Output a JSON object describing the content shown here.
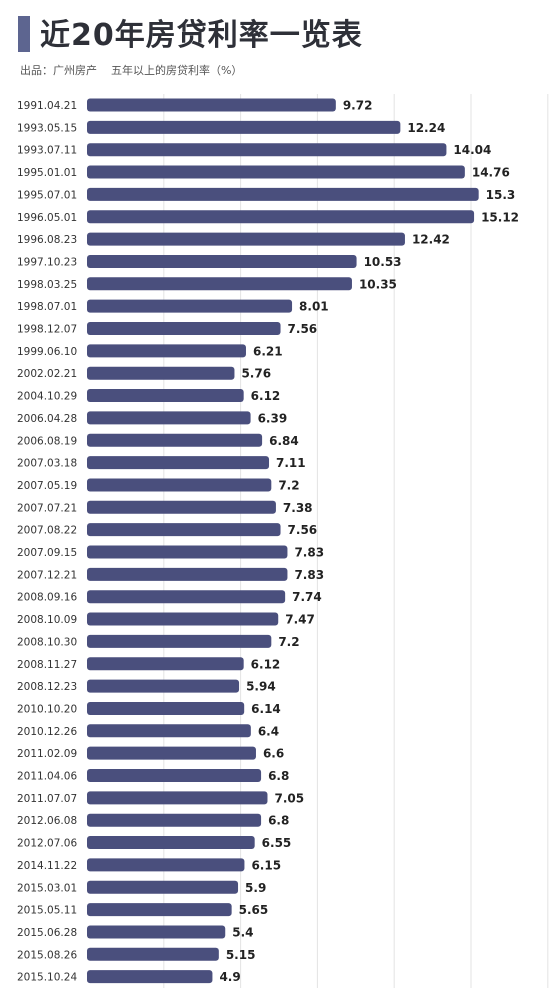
{
  "header": {
    "title": "近20年房贷利率一览表",
    "subtitle": "出品：广州房产    五年以上的房贷利率（%）"
  },
  "colors": {
    "bar": "#4a4f7d",
    "title_bar": "#5d6590",
    "grid": "#e3e3e3"
  },
  "chart_data": {
    "type": "bar",
    "orientation": "horizontal",
    "grid": true,
    "unit": "%",
    "categories": [
      "1991.04.21",
      "1993.05.15",
      "1993.07.11",
      "1995.01.01",
      "1995.07.01",
      "1996.05.01",
      "1996.08.23",
      "1997.10.23",
      "1998.03.25",
      "1998.07.01",
      "1998.12.07",
      "1999.06.10",
      "2002.02.21",
      "2004.10.29",
      "2006.04.28",
      "2006.08.19",
      "2007.03.18",
      "2007.05.19",
      "2007.07.21",
      "2007.08.22",
      "2007.09.15",
      "2007.12.21",
      "2008.09.16",
      "2008.10.09",
      "2008.10.30",
      "2008.11.27",
      "2008.12.23",
      "2010.10.20",
      "2010.12.26",
      "2011.02.09",
      "2011.04.06",
      "2011.07.07",
      "2012.06.08",
      "2012.07.06",
      "2014.11.22",
      "2015.03.01",
      "2015.05.11",
      "2015.06.28",
      "2015.08.26",
      "2015.10.24"
    ],
    "values": [
      9.72,
      12.24,
      14.04,
      14.76,
      15.3,
      15.12,
      12.42,
      10.53,
      10.35,
      8.01,
      7.56,
      6.21,
      5.76,
      6.12,
      6.39,
      6.84,
      7.11,
      7.2,
      7.38,
      7.56,
      7.83,
      7.83,
      7.74,
      7.47,
      7.2,
      6.12,
      5.94,
      6.14,
      6.4,
      6.6,
      6.8,
      7.05,
      6.8,
      6.55,
      6.15,
      5.9,
      5.65,
      5.4,
      5.15,
      4.9
    ],
    "value_labels": [
      "9.72",
      "12.24",
      "14.04",
      "14.76",
      "15.3",
      "15.12",
      "12.42",
      "10.53",
      "10.35",
      "8.01",
      "7.56",
      "6.21",
      "5.76",
      "6.12",
      "6.39",
      "6.84",
      "7.11",
      "7.2",
      "7.38",
      "7.56",
      "7.83",
      "7.83",
      "7.74",
      "7.47",
      "7.2",
      "6.12",
      "5.94",
      "6.14",
      "6.4",
      "6.6",
      "6.8",
      "7.05",
      "6.8",
      "6.55",
      "6.15",
      "5.9",
      "5.65",
      "5.4",
      "5.15",
      "4.9"
    ]
  }
}
